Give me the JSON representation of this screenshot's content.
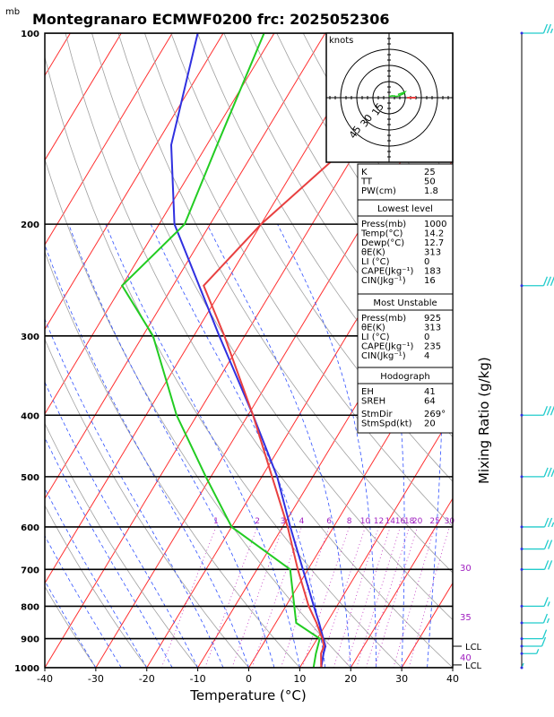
{
  "chart_data": {
    "type": "skew-t",
    "title": "Montegranaro ECMWF0200 frc: 2025052306",
    "pressure_unit_label": "mb",
    "xlabel": "Temperature (°C)",
    "ylabel": "Mixing Ratio (g/kg)",
    "x_ticks": [
      -40,
      -30,
      -20,
      -10,
      0,
      10,
      20,
      30,
      40
    ],
    "xlim": [
      -40,
      40
    ],
    "p_ticks": [
      100,
      200,
      300,
      400,
      500,
      600,
      700,
      800,
      900,
      1000
    ],
    "ylim_mb": [
      1000,
      100
    ],
    "skew_deg_per_decade": 75,
    "mixing_ratio_labels": [
      "1",
      "2",
      "3",
      "4",
      "6",
      "8",
      "10",
      "12",
      "14",
      "16",
      "18",
      "20",
      "25",
      "30"
    ],
    "mixing_ratio_label_values": [
      1,
      2,
      3,
      4,
      6,
      8,
      10,
      12,
      14,
      16,
      18,
      20,
      25,
      30
    ],
    "dry_adiabat_labels": [
      "30",
      "35",
      "40"
    ],
    "dry_adiabat_label_values": [
      30,
      35,
      40
    ],
    "lcl_labels": [
      "LCL",
      "LCL"
    ],
    "lcl_pressures_mb": [
      925,
      990
    ],
    "temperature_profile": {
      "color": "#e84040",
      "p": [
        1000,
        950,
        925,
        900,
        850,
        800,
        700,
        600,
        500,
        400,
        300,
        250,
        200,
        150,
        100
      ],
      "t": [
        14.2,
        12.5,
        12.2,
        11.0,
        8.0,
        4.5,
        -2.0,
        -9.0,
        -18.0,
        -29.0,
        -44.0,
        -54.0,
        -50.0,
        -42.0,
        -35.0
      ]
    },
    "dewpoint_profile": {
      "color": "#22cc22",
      "p": [
        1000,
        950,
        900,
        850,
        700,
        600,
        500,
        400,
        300,
        250,
        200,
        150,
        100
      ],
      "t": [
        12.7,
        11.5,
        10.5,
        4.0,
        -3.5,
        -20.0,
        -31.0,
        -44.0,
        -58.0,
        -70.0,
        -65.0,
        -68.0,
        -72.0
      ]
    },
    "parcel_profile": {
      "color": "#3030e0",
      "p": [
        1000,
        950,
        925,
        900,
        850,
        800,
        700,
        600,
        500,
        400,
        300,
        200,
        150,
        100
      ],
      "t": [
        14.2,
        13.0,
        12.5,
        11.2,
        8.5,
        5.5,
        -1.0,
        -8.5,
        -17.0,
        -29.0,
        -45.0,
        -67.0,
        -77.0,
        -85.0
      ]
    },
    "wind_profile": {
      "color": "#22cccc",
      "p": [
        100,
        250,
        400,
        500,
        600,
        650,
        700,
        800,
        850,
        900,
        925,
        950,
        1000
      ],
      "speed_kt": [
        25,
        45,
        45,
        40,
        25,
        20,
        20,
        15,
        15,
        10,
        10,
        5,
        5
      ],
      "direction_deg": [
        250,
        250,
        250,
        255,
        260,
        260,
        260,
        255,
        250,
        245,
        240,
        220,
        180
      ]
    },
    "hodograph": {
      "units_label": "knots",
      "ring_labels": [
        "15",
        "30",
        "45"
      ],
      "ring_values": [
        15,
        30,
        45
      ]
    },
    "indices_table": {
      "general": [
        {
          "label": "K",
          "value": "25"
        },
        {
          "label": "TT",
          "value": "50"
        },
        {
          "label": "PW(cm)",
          "value": "1.8"
        }
      ],
      "lowest_level_title": "Lowest level",
      "lowest_level": [
        {
          "label": "Press(mb)",
          "value": "1000"
        },
        {
          "label": "Temp(°C)",
          "value": "14.2"
        },
        {
          "label": "Dewp(°C)",
          "value": "12.7"
        },
        {
          "label": "θE(K)",
          "value": "313"
        },
        {
          "label": "LI (°C)",
          "value": "0"
        },
        {
          "label": "CAPE(Jkg⁻¹)",
          "value": "183"
        },
        {
          "label": "CIN(Jkg⁻¹)",
          "value": "16"
        }
      ],
      "most_unstable_title": "Most Unstable",
      "most_unstable": [
        {
          "label": "Press(mb)",
          "value": "925"
        },
        {
          "label": "θE(K)",
          "value": "313"
        },
        {
          "label": "LI (°C)",
          "value": "0"
        },
        {
          "label": "CAPE(Jkg⁻¹)",
          "value": "235"
        },
        {
          "label": "CIN(Jkg⁻¹)",
          "value": "4"
        }
      ],
      "hodograph_title": "Hodograph",
      "hodograph_rows": [
        {
          "label": "EH",
          "value": "41"
        },
        {
          "label": "SREH",
          "value": "64"
        },
        {
          "label": "StmDir",
          "value": "269°"
        },
        {
          "label": "StmSpd(kt)",
          "value": "20"
        }
      ]
    },
    "colors": {
      "isotherm": "#ff3030",
      "dry_adiabat": "#a0a0a0",
      "moist_adiabat": "#3050ff",
      "mixing_ratio": "#c030c0",
      "label_purple": "#a020c0"
    },
    "grid": true
  }
}
